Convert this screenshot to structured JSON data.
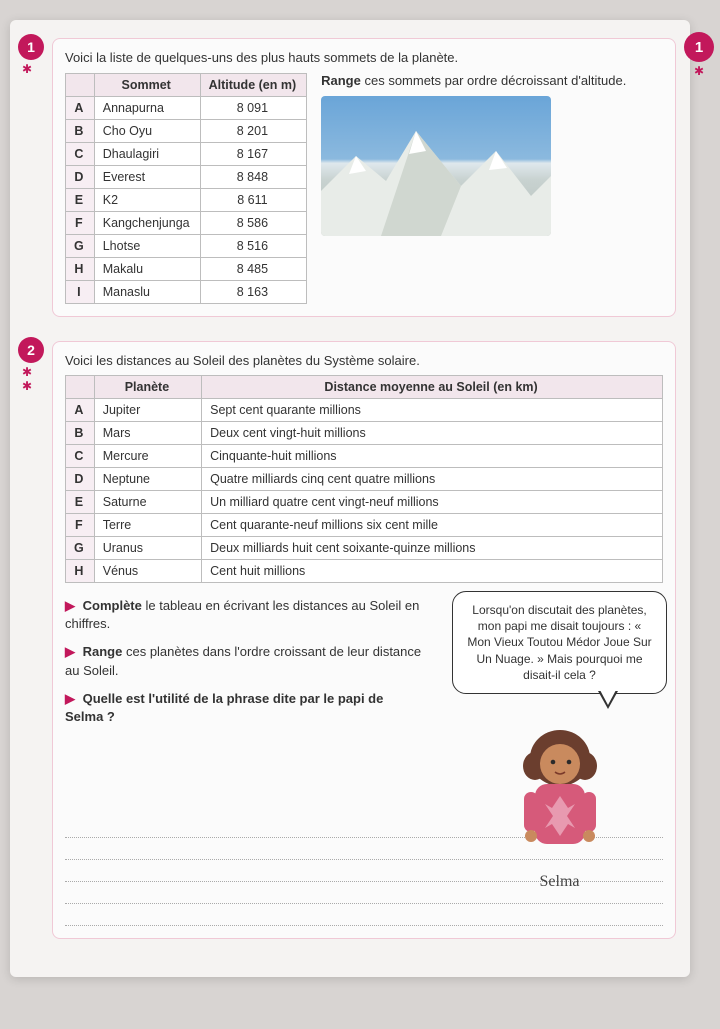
{
  "corner": {
    "num": "1"
  },
  "ex1": {
    "num": "1",
    "intro": "Voici la liste de quelques-uns des plus hauts sommets de la planète.",
    "task_bold": "Range",
    "task_rest": " ces sommets par ordre décroissant d'altitude.",
    "headers": {
      "col1": "Sommet",
      "col2": "Altitude (en m)"
    },
    "rows": [
      {
        "l": "A",
        "name": "Annapurna",
        "alt": "8 091"
      },
      {
        "l": "B",
        "name": "Cho Oyu",
        "alt": "8 201"
      },
      {
        "l": "C",
        "name": "Dhaulagiri",
        "alt": "8 167"
      },
      {
        "l": "D",
        "name": "Everest",
        "alt": "8 848"
      },
      {
        "l": "E",
        "name": "K2",
        "alt": "8 611"
      },
      {
        "l": "F",
        "name": "Kangchenjunga",
        "alt": "8 586"
      },
      {
        "l": "G",
        "name": "Lhotse",
        "alt": "8 516"
      },
      {
        "l": "H",
        "name": "Makalu",
        "alt": "8 485"
      },
      {
        "l": "I",
        "name": "Manaslu",
        "alt": "8 163"
      }
    ]
  },
  "ex2": {
    "num": "2",
    "intro": "Voici les distances au Soleil des planètes du Système solaire.",
    "headers": {
      "col1": "Planète",
      "col2": "Distance moyenne au Soleil (en km)"
    },
    "rows": [
      {
        "l": "A",
        "name": "Jupiter",
        "dist": "Sept cent quarante millions"
      },
      {
        "l": "B",
        "name": "Mars",
        "dist": "Deux cent vingt-huit millions"
      },
      {
        "l": "C",
        "name": "Mercure",
        "dist": "Cinquante-huit millions"
      },
      {
        "l": "D",
        "name": "Neptune",
        "dist": "Quatre milliards cinq cent quatre millions"
      },
      {
        "l": "E",
        "name": "Saturne",
        "dist": "Un milliard quatre cent vingt-neuf millions"
      },
      {
        "l": "F",
        "name": "Terre",
        "dist": "Cent quarante-neuf millions six cent mille"
      },
      {
        "l": "G",
        "name": "Uranus",
        "dist": "Deux milliards huit cent soixante-quinze millions"
      },
      {
        "l": "H",
        "name": "Vénus",
        "dist": "Cent huit millions"
      }
    ],
    "task1_b": "Complète",
    "task1_r": " le tableau en écrivant les distances au Soleil en chiffres.",
    "task2_b": "Range",
    "task2_r": " ces planètes dans l'ordre croissant de leur distance au Soleil.",
    "task3": "Quelle est l'utilité de la phrase dite par le papi de Selma ?",
    "bubble": "Lorsqu'on discutait des planètes, mon papi me disait toujours : « Mon Vieux Toutou Médor Joue Sur Un Nuage. » Mais pourquoi me disait-il cela ?",
    "char_name": "Selma"
  },
  "colors": {
    "accent": "#c2185b",
    "table_header_bg": "#f2e6ec",
    "border": "#f0c9d6"
  }
}
